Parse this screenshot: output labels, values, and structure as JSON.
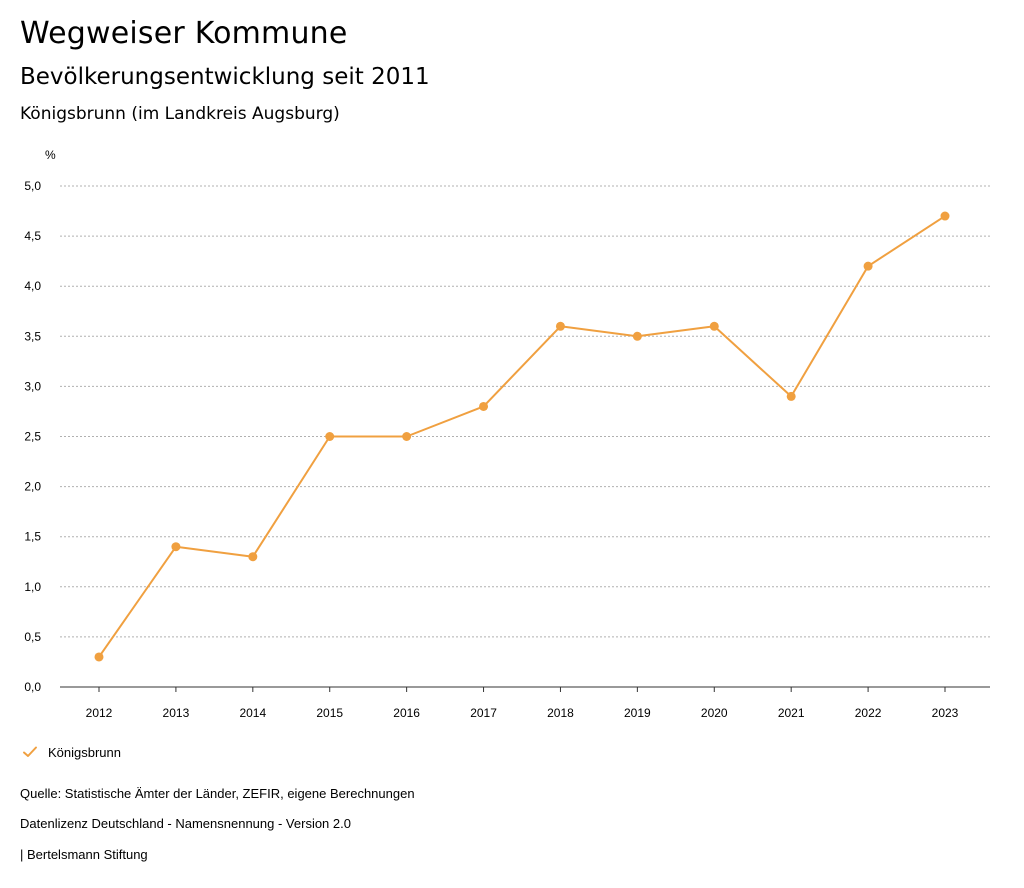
{
  "header": {
    "title": "Wegweiser Kommune",
    "subtitle": "Bevölkerungsentwicklung seit 2011",
    "region": "Königsbrunn (im Landkreis Augsburg)"
  },
  "colors": {
    "series": "#f0a040",
    "grid": "#b0b0b0",
    "axis": "#333333"
  },
  "chart_data": {
    "type": "line",
    "title": "Bevölkerungsentwicklung seit 2011",
    "ylabel": "%",
    "xlabel": "",
    "ylim": [
      0,
      5
    ],
    "yticks": [
      "0,0",
      "0,5",
      "1,0",
      "1,5",
      "2,0",
      "2,5",
      "3,0",
      "3,5",
      "4,0",
      "4,5",
      "5,0"
    ],
    "x": [
      "2012",
      "2013",
      "2014",
      "2015",
      "2016",
      "2017",
      "2018",
      "2019",
      "2020",
      "2021",
      "2022",
      "2023"
    ],
    "series": [
      {
        "name": "Königsbrunn",
        "values": [
          0.3,
          1.4,
          1.3,
          2.5,
          2.5,
          2.8,
          3.6,
          3.5,
          3.6,
          2.9,
          4.2,
          4.7
        ]
      }
    ],
    "grid": true,
    "legend": "bottom-left"
  },
  "legend": {
    "label": "Königsbrunn",
    "icon": "check-icon"
  },
  "footer": {
    "source": "Quelle: Statistische Ämter der Länder, ZEFIR, eigene Berechnungen",
    "license": "Datenlizenz Deutschland - Namensnennung - Version 2.0",
    "publisher": "| Bertelsmann Stiftung"
  }
}
